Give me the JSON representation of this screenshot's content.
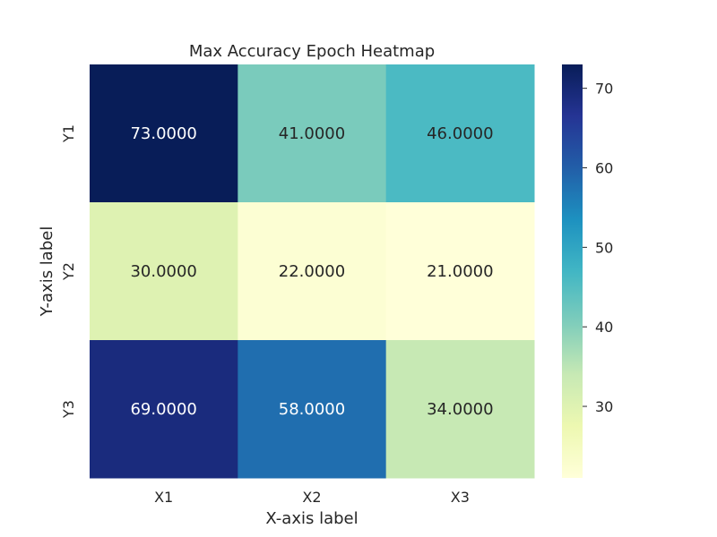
{
  "chart_data": {
    "type": "heatmap",
    "title": "Max Accuracy Epoch Heatmap",
    "xlabel": "X-axis label",
    "ylabel": "Y-axis label",
    "x_categories": [
      "X1",
      "X2",
      "X3"
    ],
    "y_categories": [
      "Y1",
      "Y2",
      "Y3"
    ],
    "values": [
      [
        73,
        41,
        46
      ],
      [
        30,
        22,
        21
      ],
      [
        69,
        58,
        34
      ]
    ],
    "value_labels": [
      [
        "73.0000",
        "41.0000",
        "46.0000"
      ],
      [
        "30.0000",
        "22.0000",
        "21.0000"
      ],
      [
        "69.0000",
        "58.0000",
        "34.0000"
      ]
    ],
    "color_range": [
      21,
      73
    ],
    "colormap": "YlGnBu",
    "colorbar_ticks": [
      30,
      40,
      50,
      60,
      70
    ],
    "colorbar_tick_labels": [
      "30",
      "40",
      "50",
      "60",
      "70"
    ],
    "grid": false
  }
}
